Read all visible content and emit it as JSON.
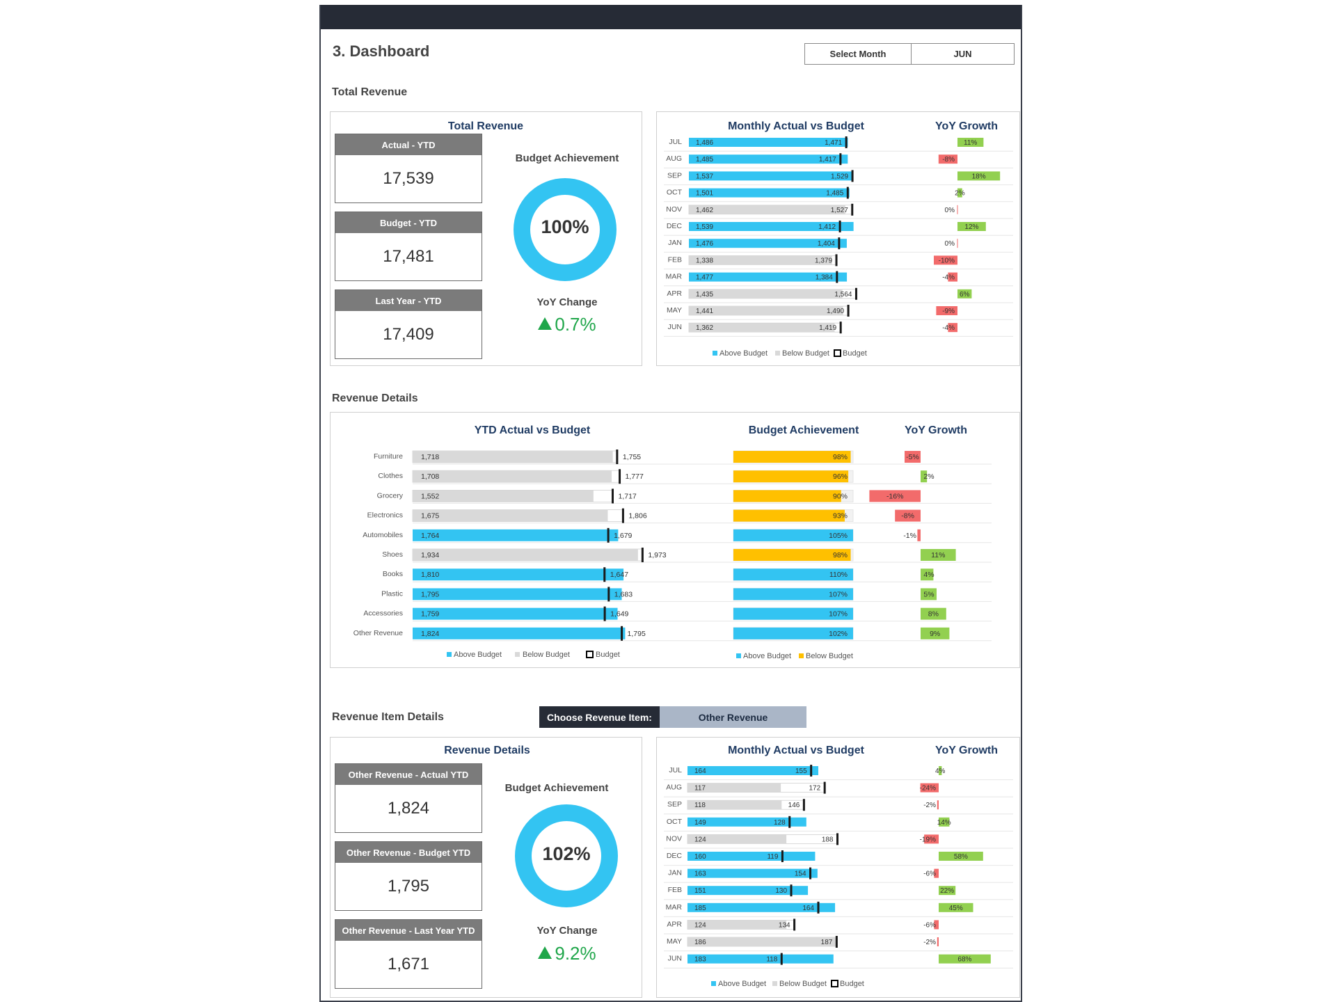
{
  "page_title": "3. Dashboard",
  "month_selector": {
    "label": "Select Month",
    "value": "JUN"
  },
  "sections": {
    "total_revenue": "Total Revenue",
    "revenue_details": "Revenue Details",
    "item_details": "Revenue Item Details"
  },
  "total": {
    "panel_title": "Total Revenue",
    "kpis": [
      {
        "label": "Actual - YTD",
        "value": "17,539"
      },
      {
        "label": "Budget - YTD",
        "value": "17,481"
      },
      {
        "label": "Last Year - YTD",
        "value": "17,409"
      }
    ],
    "budget_achievement_label": "Budget Achievement",
    "budget_achievement_value": "100%",
    "budget_achievement_pct": 100,
    "yoy_label": "YoY Change",
    "yoy_value": "0.7%"
  },
  "monthly_titles": {
    "left": "Monthly Actual vs Budget",
    "right": "YoY Growth"
  },
  "monthly_legend": {
    "above": "Above Budget",
    "below": "Below Budget",
    "budget": "Budget"
  },
  "colors": {
    "above": "#33c4f2",
    "below": "#d9d9d9",
    "budget_marker": "#1a1a1a",
    "pos_growth": "#92d050",
    "neg_growth": "#f26b6b",
    "achieve_low": "#ffc000",
    "dark": "#262b36",
    "title_blue": "#1f3b63",
    "green_text": "#1fa64a"
  },
  "chart_data": [
    {
      "type": "bar",
      "title": "Monthly Actual vs Budget",
      "categories": [
        "JUL",
        "AUG",
        "SEP",
        "OCT",
        "NOV",
        "DEC",
        "JAN",
        "FEB",
        "MAR",
        "APR",
        "MAY",
        "JUN"
      ],
      "series": [
        {
          "name": "Actual",
          "values": [
            1486,
            1485,
            1537,
            1501,
            1462,
            1539,
            1476,
            1338,
            1477,
            1435,
            1441,
            1362
          ]
        },
        {
          "name": "Budget",
          "values": [
            1471,
            1417,
            1529,
            1485,
            1527,
            1412,
            1404,
            1379,
            1384,
            1564,
            1490,
            1419
          ]
        }
      ],
      "actual_labels": [
        "1,486",
        "1,485",
        "1,537",
        "1,501",
        "1,462",
        "1,539",
        "1,476",
        "1,338",
        "1,477",
        "1,435",
        "1,441",
        "1,362"
      ],
      "budget_labels": [
        "1,471",
        "1,417",
        "1,529",
        "1,485",
        "1,527",
        "1,412",
        "1,404",
        "1,379",
        "1,384",
        "1,564",
        "1,490",
        "1,419"
      ]
    },
    {
      "type": "bar",
      "title": "YoY Growth",
      "categories": [
        "JUL",
        "AUG",
        "SEP",
        "OCT",
        "NOV",
        "DEC",
        "JAN",
        "FEB",
        "MAR",
        "APR",
        "MAY",
        "JUN"
      ],
      "values": [
        11,
        -8,
        18,
        2,
        0,
        12,
        0,
        -10,
        -4,
        6,
        -9,
        -4
      ],
      "labels": [
        "11%",
        "-8%",
        "18%",
        "2%",
        "0%",
        "12%",
        "0%",
        "-10%",
        "-4%",
        "6%",
        "-9%",
        "-4%"
      ]
    },
    {
      "type": "bar",
      "title": "YTD Actual vs Budget",
      "categories": [
        "Furniture",
        "Clothes",
        "Grocery",
        "Electronics",
        "Automobiles",
        "Shoes",
        "Books",
        "Plastic",
        "Accessories",
        "Other Revenue"
      ],
      "series": [
        {
          "name": "Actual",
          "values": [
            1718,
            1708,
            1552,
            1675,
            1764,
            1934,
            1810,
            1795,
            1759,
            1824
          ]
        },
        {
          "name": "Budget",
          "values": [
            1755,
            1777,
            1717,
            1806,
            1679,
            1973,
            1647,
            1683,
            1649,
            1795
          ]
        }
      ],
      "actual_labels": [
        "1,718",
        "1,708",
        "1,552",
        "1,675",
        "1,764",
        "1,934",
        "1,810",
        "1,795",
        "1,759",
        "1,824"
      ],
      "budget_labels": [
        "1,755",
        "1,777",
        "1,717",
        "1,806",
        "1,679",
        "1,973",
        "1,647",
        "1,683",
        "1,649",
        "1,795"
      ]
    },
    {
      "type": "bar",
      "title": "Budget Achievement",
      "categories": [
        "Furniture",
        "Clothes",
        "Grocery",
        "Electronics",
        "Automobiles",
        "Shoes",
        "Books",
        "Plastic",
        "Accessories",
        "Other Revenue"
      ],
      "values": [
        98,
        96,
        90,
        93,
        105,
        98,
        110,
        107,
        107,
        102
      ],
      "labels": [
        "98%",
        "96%",
        "90%",
        "93%",
        "105%",
        "98%",
        "110%",
        "107%",
        "107%",
        "102%"
      ]
    },
    {
      "type": "bar",
      "title": "YoY Growth",
      "categories": [
        "Furniture",
        "Clothes",
        "Grocery",
        "Electronics",
        "Automobiles",
        "Shoes",
        "Books",
        "Plastic",
        "Accessories",
        "Other Revenue"
      ],
      "values": [
        -5,
        2,
        -16,
        -8,
        -1,
        11,
        4,
        5,
        8,
        9
      ],
      "labels": [
        "-5%",
        "2%",
        "-16%",
        "-8%",
        "-1%",
        "11%",
        "4%",
        "5%",
        "8%",
        "9%"
      ]
    },
    {
      "type": "bar",
      "title": "Monthly Actual vs Budget",
      "categories": [
        "JUL",
        "AUG",
        "SEP",
        "OCT",
        "NOV",
        "DEC",
        "JAN",
        "FEB",
        "MAR",
        "APR",
        "MAY",
        "JUN"
      ],
      "series": [
        {
          "name": "Actual",
          "values": [
            164,
            117,
            118,
            149,
            124,
            160,
            163,
            151,
            185,
            124,
            186,
            183
          ]
        },
        {
          "name": "Budget",
          "values": [
            155,
            172,
            146,
            128,
            188,
            119,
            154,
            130,
            164,
            134,
            187,
            118
          ]
        }
      ],
      "actual_labels": [
        "164",
        "117",
        "118",
        "149",
        "124",
        "160",
        "163",
        "151",
        "185",
        "124",
        "186",
        "183"
      ],
      "budget_labels": [
        "155",
        "172",
        "146",
        "128",
        "188",
        "119",
        "154",
        "130",
        "164",
        "134",
        "187",
        "118"
      ]
    },
    {
      "type": "bar",
      "title": "YoY Growth",
      "categories": [
        "JUL",
        "AUG",
        "SEP",
        "OCT",
        "NOV",
        "DEC",
        "JAN",
        "FEB",
        "MAR",
        "APR",
        "MAY",
        "JUN"
      ],
      "values": [
        4,
        -24,
        -2,
        14,
        -19,
        58,
        -6,
        22,
        45,
        -6,
        -2,
        68
      ],
      "labels": [
        "4%",
        "-24%",
        "-2%",
        "14%",
        "-19%",
        "58%",
        "-6%",
        "22%",
        "45%",
        "-6%",
        "-2%",
        "68%"
      ]
    }
  ],
  "details": {
    "ytd_title": "YTD Actual vs Budget",
    "ach_title": "Budget Achievement",
    "yoy_title": "YoY Growth",
    "legend_left": {
      "above": "Above Budget",
      "below": "Below Budget",
      "budget": "Budget"
    },
    "legend_mid": {
      "above": "Above Budget",
      "below": "Below Budget"
    }
  },
  "choose": {
    "label": "Choose Revenue Item:",
    "value": "Other Revenue"
  },
  "item": {
    "panel_title": "Revenue Details",
    "kpis": [
      {
        "label": "Other Revenue - Actual YTD",
        "value": "1,824"
      },
      {
        "label": "Other Revenue - Budget YTD",
        "value": "1,795"
      },
      {
        "label": "Other Revenue - Last Year YTD",
        "value": "1,671"
      }
    ],
    "budget_achievement_label": "Budget Achievement",
    "budget_achievement_value": "102%",
    "budget_achievement_pct": 100,
    "yoy_label": "YoY Change",
    "yoy_value": "9.2%"
  }
}
